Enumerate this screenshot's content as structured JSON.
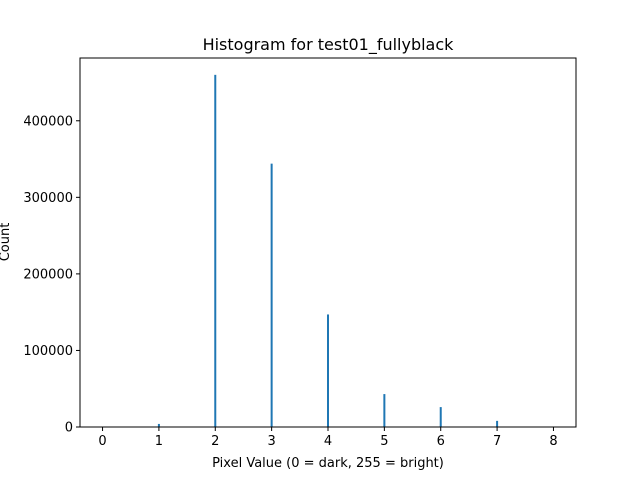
{
  "chart_data": {
    "type": "bar",
    "title": "Histogram for test01_fullyblack",
    "xlabel": "Pixel Value (0 = dark, 255 = bright)",
    "ylabel": "Count",
    "xlim": [
      -0.4,
      8.4
    ],
    "ylim": [
      0,
      482000
    ],
    "xticks": [
      0,
      1,
      2,
      3,
      4,
      5,
      6,
      7,
      8
    ],
    "xtick_labels": [
      "0",
      "1",
      "2",
      "3",
      "4",
      "5",
      "6",
      "7",
      "8"
    ],
    "yticks": [
      0,
      100000,
      200000,
      300000,
      400000
    ],
    "ytick_labels": [
      "0",
      "100000",
      "200000",
      "300000",
      "400000"
    ],
    "bars": [
      {
        "x": 1,
        "value": 4000
      },
      {
        "x": 2,
        "value": 460000
      },
      {
        "x": 3,
        "value": 344000
      },
      {
        "x": 4,
        "value": 147000
      },
      {
        "x": 5,
        "value": 43000
      },
      {
        "x": 6,
        "value": 26000
      },
      {
        "x": 7,
        "value": 8000
      }
    ],
    "bar_color": "#1f77b4",
    "grid": false,
    "legend": "none"
  }
}
